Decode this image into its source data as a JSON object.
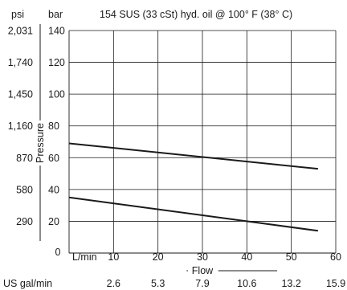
{
  "header": {
    "psi_unit": "psi",
    "bar_unit": "bar",
    "title": "154 SUS (33 cSt) hyd. oil @ 100° F (38° C)"
  },
  "colors": {
    "line": "#1a1a1a",
    "grid": "#1a1a1a",
    "text": "#1a1a1a",
    "background": "#ffffff"
  },
  "chart_data": {
    "type": "line",
    "title": "154 SUS (33 cSt) hyd. oil @ 100° F (38° C)",
    "xlabel": "Flow",
    "ylabel": "Pressure",
    "x_unit_label": "L/min",
    "x_secondary_unit_label": "US gal/min",
    "xlim": [
      0,
      60
    ],
    "ylim": [
      0,
      140
    ],
    "grid": true,
    "x_ticks": [
      10,
      20,
      30,
      40,
      50,
      60
    ],
    "x_zero_label": "0",
    "x_secondary_ticks": [
      "2.6",
      "5.3",
      "7.9",
      "10.6",
      "13.2",
      "15.9"
    ],
    "y_ticks": [
      20,
      40,
      60,
      80,
      100,
      120,
      140
    ],
    "y_secondary_ticks": [
      "290",
      "580",
      "870",
      "1,160",
      "1,450",
      "1,740",
      "2,031"
    ],
    "series": [
      {
        "x": [
          0,
          56
        ],
        "y": [
          69,
          53
        ]
      },
      {
        "x": [
          0,
          56
        ],
        "y": [
          35,
          14
        ]
      }
    ]
  }
}
